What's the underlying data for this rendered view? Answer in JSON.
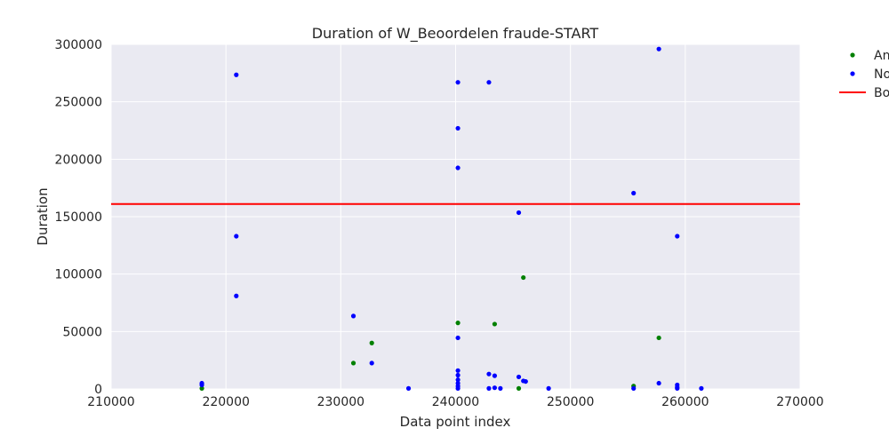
{
  "chart_data": {
    "type": "scatter",
    "title": "Duration of W_Beoordelen fraude-START",
    "xlabel": "Data point index",
    "ylabel": "Duration",
    "xlim": [
      210000,
      270000
    ],
    "ylim": [
      0,
      300000
    ],
    "x_ticks": [
      "210000",
      "220000",
      "230000",
      "240000",
      "250000",
      "260000",
      "270000"
    ],
    "y_ticks": [
      "0",
      "50000",
      "100000",
      "150000",
      "200000",
      "250000",
      "300000"
    ],
    "grid": true,
    "legend_position": "right, outside",
    "series": [
      {
        "name": "An",
        "color": "#008000",
        "marker": "dot",
        "points": [
          [
            217900,
            500
          ],
          [
            231100,
            22500
          ],
          [
            232700,
            40000
          ],
          [
            240200,
            57500
          ],
          [
            243400,
            56500
          ],
          [
            245500,
            500
          ],
          [
            245900,
            97000
          ],
          [
            255500,
            2500
          ],
          [
            257700,
            44500
          ]
        ]
      },
      {
        "name": "No",
        "color": "#0000ff",
        "marker": "dot",
        "points": [
          [
            217900,
            3500
          ],
          [
            217900,
            5000
          ],
          [
            220900,
            273500
          ],
          [
            220900,
            133000
          ],
          [
            220900,
            81000
          ],
          [
            231100,
            63500
          ],
          [
            232700,
            22500
          ],
          [
            235900,
            500
          ],
          [
            240200,
            267000
          ],
          [
            240200,
            227000
          ],
          [
            240200,
            192500
          ],
          [
            240200,
            44500
          ],
          [
            240200,
            16000
          ],
          [
            240200,
            12000
          ],
          [
            240200,
            8000
          ],
          [
            240200,
            5000
          ],
          [
            240200,
            2500
          ],
          [
            240200,
            500
          ],
          [
            242900,
            267000
          ],
          [
            242900,
            13000
          ],
          [
            242900,
            500
          ],
          [
            243400,
            11500
          ],
          [
            243400,
            1000
          ],
          [
            243900,
            500
          ],
          [
            245500,
            153500
          ],
          [
            245500,
            10500
          ],
          [
            245900,
            7000
          ],
          [
            246100,
            6500
          ],
          [
            248100,
            500
          ],
          [
            255500,
            170500
          ],
          [
            255500,
            500
          ],
          [
            257700,
            296000
          ],
          [
            257700,
            5000
          ],
          [
            259300,
            133000
          ],
          [
            259300,
            3500
          ],
          [
            259300,
            1500
          ],
          [
            259300,
            500
          ],
          [
            261400,
            500
          ]
        ]
      }
    ],
    "lines": [
      {
        "name": "Bo",
        "color": "#ff0000",
        "orientation": "horizontal",
        "y": 161000
      }
    ]
  }
}
